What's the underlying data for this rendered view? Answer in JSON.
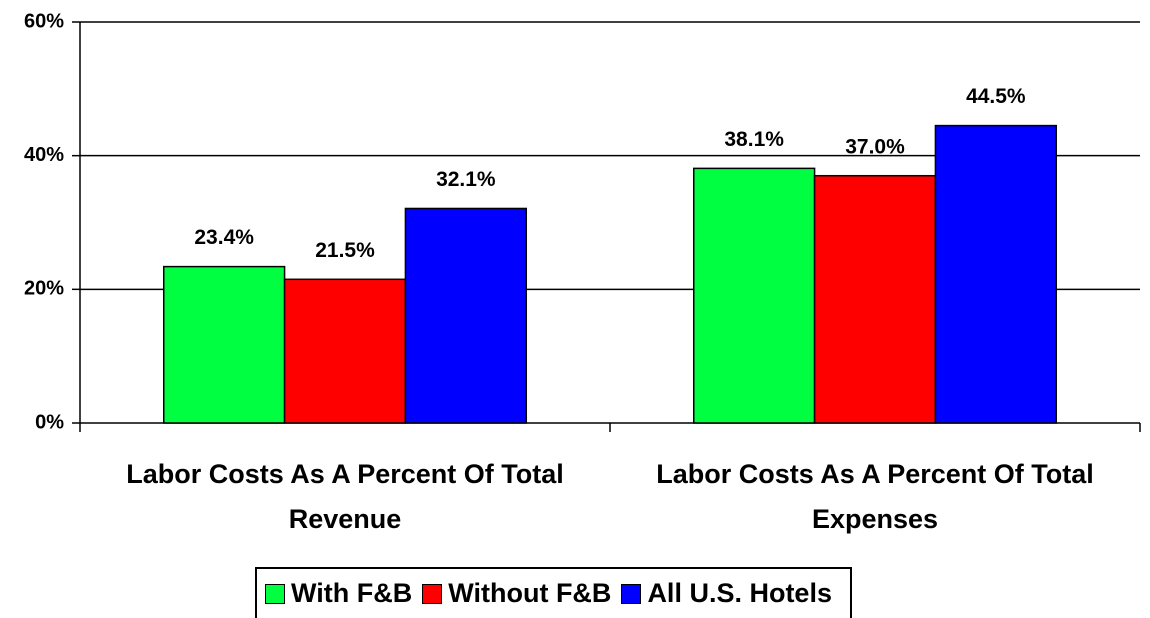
{
  "chart_data": {
    "type": "bar",
    "categories": [
      "Labor Costs As A Percent Of Total Revenue",
      "Labor Costs As A Percent Of Total Expenses"
    ],
    "series": [
      {
        "name": "With F&B",
        "color": "#00ff40",
        "values": [
          23.4,
          38.1
        ],
        "value_labels": [
          "23.4%",
          "38.1%"
        ]
      },
      {
        "name": "Without F&B",
        "color": "#ff0000",
        "values": [
          21.5,
          37.0
        ],
        "value_labels": [
          "21.5%",
          "37.0%"
        ]
      },
      {
        "name": "All U.S. Hotels",
        "color": "#0000ff",
        "values": [
          32.1,
          44.5
        ],
        "value_labels": [
          "32.1%",
          "44.5%"
        ]
      }
    ],
    "ylim": [
      0,
      60
    ],
    "yticks": [
      {
        "value": 0,
        "label": "0%"
      },
      {
        "value": 20,
        "label": "20%"
      },
      {
        "value": 40,
        "label": "40%"
      },
      {
        "value": 60,
        "label": "60%"
      }
    ],
    "grid": true,
    "legend": "bottom"
  }
}
